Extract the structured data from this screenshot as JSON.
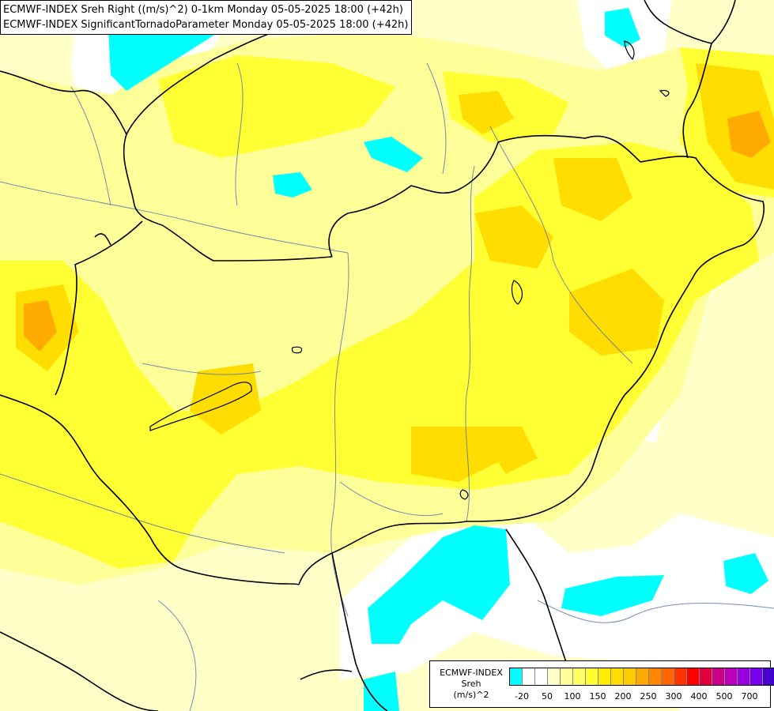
{
  "titles": {
    "line1": "ECMWF-INDEX Sreh Right ((m/s)^2) 0-1km Monday 05-05-2025 18:00 (+42h)",
    "line2": "ECMWF-INDEX SignificantTornadoParameter Monday 05-05-2025 18:00 (+42h)"
  },
  "legend": {
    "title_line1": "ECMWF-INDEX",
    "title_line2": "Sreh",
    "title_line3": "(m/s)^2",
    "colors": [
      "#00ffff",
      "#ffffff",
      "#ffffff",
      "#ffffc8",
      "#ffff9a",
      "#ffff66",
      "#ffff33",
      "#ffee00",
      "#ffdd00",
      "#ffcc00",
      "#ffaa00",
      "#ff8800",
      "#ff6600",
      "#ff3300",
      "#ff0000",
      "#e00040",
      "#cc0088",
      "#bb00bb",
      "#9900dd",
      "#7700ee",
      "#4400cc",
      "#0000aa",
      "#000077"
    ],
    "labels": [
      "-20",
      "50",
      "100",
      "150",
      "200",
      "250",
      "300",
      "400",
      "500",
      "700"
    ]
  },
  "colors": {
    "cyan": "#00ffff",
    "pale_yellow": "#ffffc8",
    "light_yellow": "#ffff99",
    "yellow": "#ffff33",
    "gold": "#ffdd00",
    "orange": "#ffaa00",
    "border": "#000000",
    "river": "#5070b0"
  }
}
